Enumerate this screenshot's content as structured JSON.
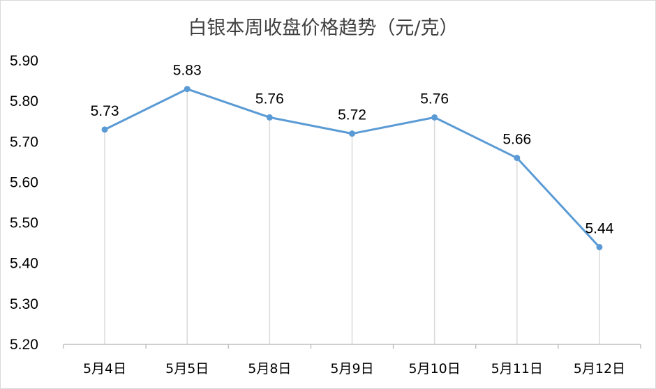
{
  "chart_data": {
    "type": "line",
    "title": "白银本周收盘价格趋势（元/克）",
    "categories": [
      "5月4日",
      "5月5日",
      "5月8日",
      "5月9日",
      "5月10日",
      "5月11日",
      "5月12日"
    ],
    "series": [
      {
        "values": [
          5.73,
          5.83,
          5.76,
          5.72,
          5.76,
          5.66,
          5.44
        ]
      }
    ],
    "data_labels": [
      "5.73",
      "5.83",
      "5.76",
      "5.72",
      "5.76",
      "5.66",
      "5.44"
    ],
    "y_ticks": [
      "5.20",
      "5.30",
      "5.40",
      "5.50",
      "5.60",
      "5.70",
      "5.80",
      "5.90"
    ],
    "ylim": [
      5.2,
      5.9
    ],
    "drop_lines": true,
    "legend": "none",
    "colors": {
      "line": "#5b9bd5",
      "drop_line": "#d9d9d9",
      "axis": "#bfbfbf"
    }
  }
}
